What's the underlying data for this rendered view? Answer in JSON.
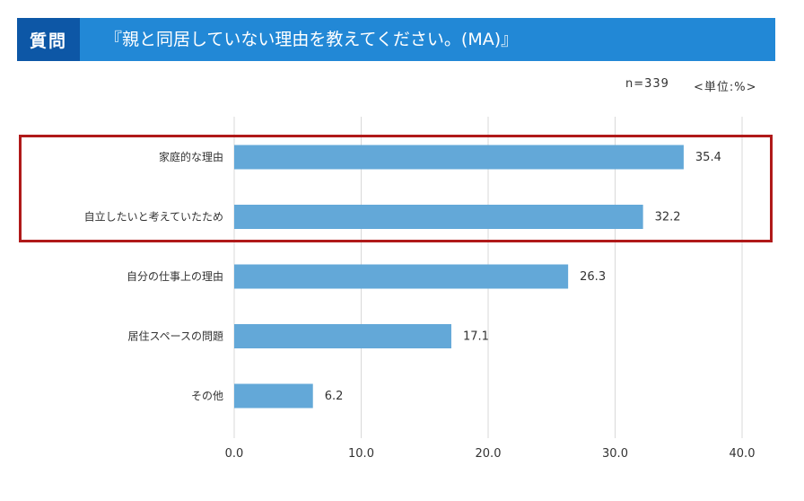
{
  "header": {
    "tag": "質問",
    "title": "『親と同居していない理由を教えてください。(MA)』"
  },
  "meta": {
    "n_label": "n=339",
    "unit_label": "<単位:%>"
  },
  "colors": {
    "header_bg": "#2288d6",
    "tag_bg": "#0d57a6",
    "bar": "#63a8d8",
    "highlight": "#b01a1a",
    "grid": "#d9d9d9"
  },
  "chart_data": {
    "type": "bar",
    "orientation": "horizontal",
    "categories": [
      "家庭的な理由",
      "自立したいと考えていたため",
      "自分の仕事上の理由",
      "居住スペースの問題",
      "その他"
    ],
    "values": [
      35.4,
      32.2,
      26.3,
      17.1,
      6.2
    ],
    "value_labels": [
      "35.4",
      "32.2",
      "26.3",
      "17.1",
      "6.2"
    ],
    "xlim": [
      0,
      40
    ],
    "xticks": [
      "0.0",
      "10.0",
      "20.0",
      "30.0",
      "40.0"
    ],
    "grid": "vertical",
    "highlighted_categories": [
      0,
      1
    ]
  }
}
